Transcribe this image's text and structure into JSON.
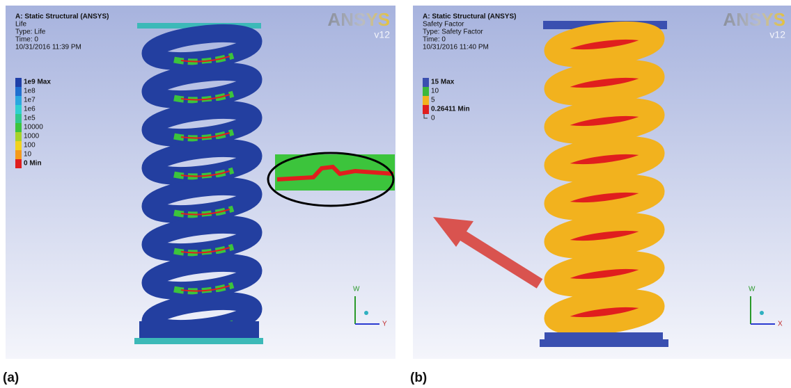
{
  "panels": [
    {
      "label": "(a)",
      "header": [
        "A: Static Structural (ANSYS)",
        "Life",
        "Type: Life",
        "Time: 0",
        "10/31/2016 11:39 PM"
      ],
      "legend": [
        {
          "label": "1e9 Max",
          "color": "#1f3fa8"
        },
        {
          "label": "1e8",
          "color": "#1f6fd0"
        },
        {
          "label": "1e7",
          "color": "#2aa7e0"
        },
        {
          "label": "1e6",
          "color": "#2fd0d0"
        },
        {
          "label": "1e5",
          "color": "#2fc98c"
        },
        {
          "label": "10000",
          "color": "#3cc43c"
        },
        {
          "label": "1000",
          "color": "#a8d22a"
        },
        {
          "label": "100",
          "color": "#f2d21e"
        },
        {
          "label": "10",
          "color": "#f59a1a"
        },
        {
          "label": "0 Min",
          "color": "#e01e1e"
        }
      ],
      "logo": "ANSYS",
      "version": "v12",
      "axes": [
        "W",
        "Y"
      ]
    },
    {
      "label": "(b)",
      "header": [
        "A: Static Structural (ANSYS)",
        "Safety Factor",
        "Type: Safety Factor",
        "Time: 0",
        "10/31/2016 11:40 PM"
      ],
      "legend": [
        {
          "label": "15 Max",
          "color": "#3a4fb0"
        },
        {
          "label": "10",
          "color": "#3cb83c"
        },
        {
          "label": "5",
          "color": "#f2b21e"
        },
        {
          "label": "0.26411 Min",
          "color": "#e01e1e"
        },
        {
          "label": "0"
        }
      ],
      "logo": "ANSYS",
      "version": "v12",
      "axes": [
        "W",
        "X"
      ]
    }
  ]
}
